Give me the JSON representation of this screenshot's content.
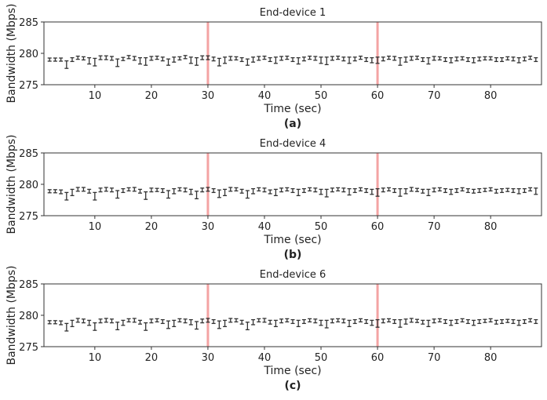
{
  "chart_data": [
    {
      "type": "scatter",
      "title": "End-device 1",
      "caption": "(a)",
      "xlabel": "Time (sec)",
      "ylabel": "Bandwidth (Mbps)",
      "xlim": [
        1,
        89
      ],
      "ylim": [
        275,
        285
      ],
      "xticks": [
        10,
        20,
        30,
        40,
        50,
        60,
        70,
        80
      ],
      "yticks": [
        275,
        280,
        285
      ],
      "grid": false,
      "markers": {
        "x": [
          30,
          60
        ],
        "color": "#f4a3a3"
      },
      "error_bar_color": "#333333",
      "x": [
        2,
        3,
        4,
        5,
        6,
        7,
        8,
        9,
        10,
        11,
        12,
        13,
        14,
        15,
        16,
        17,
        18,
        19,
        20,
        21,
        22,
        23,
        24,
        25,
        26,
        27,
        28,
        29,
        30,
        31,
        32,
        33,
        34,
        35,
        36,
        37,
        38,
        39,
        40,
        41,
        42,
        43,
        44,
        45,
        46,
        47,
        48,
        49,
        50,
        51,
        52,
        53,
        54,
        55,
        56,
        57,
        58,
        59,
        60,
        61,
        62,
        63,
        64,
        65,
        66,
        67,
        68,
        69,
        70,
        71,
        72,
        73,
        74,
        75,
        76,
        77,
        78,
        79,
        80,
        81,
        82,
        83,
        84,
        85,
        86,
        87,
        88
      ],
      "mean": [
        279,
        279,
        279,
        278.2,
        279,
        279.3,
        279.2,
        278.8,
        278.6,
        279.3,
        279.3,
        279.2,
        278.5,
        279.1,
        279.4,
        279.2,
        278.8,
        278.7,
        279.2,
        279.3,
        279.1,
        278.6,
        279,
        279.2,
        279.4,
        278.9,
        278.7,
        279.3,
        279.3,
        279.1,
        278.6,
        278.9,
        279.2,
        279.2,
        279,
        278.6,
        279,
        279.2,
        279.3,
        279,
        278.9,
        279.2,
        279.3,
        279,
        278.8,
        279.1,
        279.3,
        279.2,
        278.9,
        278.8,
        279.2,
        279.3,
        279.1,
        278.9,
        279.1,
        279.3,
        279,
        278.9,
        278.9,
        279.1,
        279.3,
        279.2,
        278.7,
        279,
        279.2,
        279.3,
        279,
        278.8,
        279.2,
        279.2,
        279,
        278.9,
        279.1,
        279.2,
        279,
        278.9,
        279.1,
        279.2,
        279.2,
        279,
        279,
        279.2,
        279.1,
        278.9,
        279.1,
        279.3,
        279
      ],
      "err": [
        0.25,
        0.25,
        0.25,
        0.6,
        0.3,
        0.25,
        0.25,
        0.5,
        0.6,
        0.3,
        0.3,
        0.3,
        0.6,
        0.25,
        0.25,
        0.3,
        0.5,
        0.6,
        0.3,
        0.25,
        0.3,
        0.5,
        0.4,
        0.25,
        0.25,
        0.5,
        0.6,
        0.3,
        0.3,
        0.3,
        0.6,
        0.5,
        0.3,
        0.25,
        0.3,
        0.5,
        0.4,
        0.3,
        0.25,
        0.3,
        0.5,
        0.3,
        0.25,
        0.3,
        0.5,
        0.3,
        0.25,
        0.3,
        0.5,
        0.6,
        0.3,
        0.25,
        0.3,
        0.5,
        0.3,
        0.25,
        0.3,
        0.4,
        0.5,
        0.3,
        0.25,
        0.3,
        0.6,
        0.4,
        0.3,
        0.25,
        0.3,
        0.5,
        0.3,
        0.25,
        0.3,
        0.4,
        0.3,
        0.25,
        0.3,
        0.4,
        0.3,
        0.25,
        0.25,
        0.3,
        0.3,
        0.25,
        0.3,
        0.4,
        0.3,
        0.25,
        0.3
      ]
    },
    {
      "type": "scatter",
      "title": "End-device 4",
      "caption": "(b)",
      "xlabel": "Time (sec)",
      "ylabel": "Bandwidth (Mbps)",
      "xlim": [
        1,
        89
      ],
      "ylim": [
        275,
        285
      ],
      "xticks": [
        10,
        20,
        30,
        40,
        50,
        60,
        70,
        80
      ],
      "yticks": [
        275,
        280,
        285
      ],
      "grid": false,
      "markers": {
        "x": [
          30,
          60
        ],
        "color": "#f4a3a3"
      },
      "error_bar_color": "#333333",
      "x": [
        2,
        3,
        4,
        5,
        6,
        7,
        8,
        9,
        10,
        11,
        12,
        13,
        14,
        15,
        16,
        17,
        18,
        19,
        20,
        21,
        22,
        23,
        24,
        25,
        26,
        27,
        28,
        29,
        30,
        31,
        32,
        33,
        34,
        35,
        36,
        37,
        38,
        39,
        40,
        41,
        42,
        43,
        44,
        45,
        46,
        47,
        48,
        49,
        50,
        51,
        52,
        53,
        54,
        55,
        56,
        57,
        58,
        59,
        60,
        61,
        62,
        63,
        64,
        65,
        66,
        67,
        68,
        69,
        70,
        71,
        72,
        73,
        74,
        75,
        76,
        77,
        78,
        79,
        80,
        81,
        82,
        83,
        84,
        85,
        86,
        87,
        88
      ],
      "mean": [
        278.9,
        278.9,
        278.8,
        278.1,
        278.7,
        279.2,
        279.2,
        278.9,
        278.1,
        279.1,
        279.2,
        279.1,
        278.4,
        279,
        279.2,
        279.2,
        278.9,
        278.2,
        279.1,
        279.1,
        279,
        278.4,
        278.9,
        279.2,
        279.1,
        278.8,
        278.3,
        279.1,
        279.2,
        279,
        278.5,
        278.7,
        279.2,
        279.2,
        278.9,
        278.4,
        278.9,
        279.2,
        279.1,
        278.8,
        278.7,
        279.1,
        279.2,
        279,
        278.7,
        279,
        279.2,
        279.1,
        278.8,
        278.6,
        279.1,
        279.2,
        279.1,
        278.8,
        279,
        279.2,
        279,
        278.8,
        278.7,
        279.1,
        279.2,
        279,
        278.7,
        278.9,
        279.2,
        279.1,
        278.9,
        278.7,
        279.1,
        279.2,
        279,
        278.8,
        279,
        279.2,
        279,
        278.9,
        279,
        279.1,
        279.2,
        278.9,
        279,
        279.1,
        279,
        278.9,
        279,
        279.2,
        278.9
      ],
      "err": [
        0.25,
        0.25,
        0.3,
        0.6,
        0.5,
        0.3,
        0.3,
        0.3,
        0.6,
        0.3,
        0.3,
        0.3,
        0.6,
        0.3,
        0.25,
        0.3,
        0.3,
        0.6,
        0.3,
        0.25,
        0.3,
        0.6,
        0.4,
        0.25,
        0.3,
        0.4,
        0.6,
        0.3,
        0.3,
        0.3,
        0.6,
        0.5,
        0.3,
        0.25,
        0.3,
        0.6,
        0.4,
        0.25,
        0.3,
        0.3,
        0.5,
        0.3,
        0.25,
        0.3,
        0.5,
        0.3,
        0.25,
        0.3,
        0.4,
        0.6,
        0.3,
        0.25,
        0.3,
        0.5,
        0.3,
        0.25,
        0.3,
        0.4,
        0.6,
        0.3,
        0.25,
        0.3,
        0.6,
        0.4,
        0.3,
        0.25,
        0.3,
        0.5,
        0.3,
        0.25,
        0.3,
        0.4,
        0.3,
        0.25,
        0.3,
        0.3,
        0.3,
        0.25,
        0.25,
        0.3,
        0.3,
        0.25,
        0.3,
        0.4,
        0.3,
        0.25,
        0.5
      ]
    },
    {
      "type": "scatter",
      "title": "End-device 6",
      "caption": "(c)",
      "xlabel": "Time (sec)",
      "ylabel": "Bandwidth (Mbps)",
      "xlim": [
        1,
        89
      ],
      "ylim": [
        275,
        285
      ],
      "xticks": [
        10,
        20,
        30,
        40,
        50,
        60,
        70,
        80
      ],
      "yticks": [
        275,
        280,
        285
      ],
      "grid": false,
      "markers": {
        "x": [
          30,
          60
        ],
        "color": "#f4a3a3"
      },
      "error_bar_color": "#333333",
      "x": [
        2,
        3,
        4,
        5,
        6,
        7,
        8,
        9,
        10,
        11,
        12,
        13,
        14,
        15,
        16,
        17,
        18,
        19,
        20,
        21,
        22,
        23,
        24,
        25,
        26,
        27,
        28,
        29,
        30,
        31,
        32,
        33,
        34,
        35,
        36,
        37,
        38,
        39,
        40,
        41,
        42,
        43,
        44,
        45,
        46,
        47,
        48,
        49,
        50,
        51,
        52,
        53,
        54,
        55,
        56,
        57,
        58,
        59,
        60,
        61,
        62,
        63,
        64,
        65,
        66,
        67,
        68,
        69,
        70,
        71,
        72,
        73,
        74,
        75,
        76,
        77,
        78,
        79,
        80,
        81,
        82,
        83,
        84,
        85,
        86,
        87,
        88
      ],
      "mean": [
        278.9,
        278.9,
        278.8,
        278.1,
        278.7,
        279.2,
        279.1,
        278.8,
        278.2,
        279.1,
        279.2,
        279.1,
        278.3,
        278.8,
        279.2,
        279.2,
        278.9,
        278.2,
        279.1,
        279.2,
        279,
        278.5,
        278.7,
        279.2,
        279.1,
        278.9,
        278.4,
        279.1,
        279.2,
        279,
        278.5,
        278.7,
        279.2,
        279.2,
        278.9,
        278.3,
        278.9,
        279.2,
        279.2,
        278.9,
        278.7,
        279.1,
        279.2,
        279,
        278.7,
        279,
        279.2,
        279.1,
        278.8,
        278.6,
        279.1,
        279.2,
        279.1,
        278.7,
        279,
        279.2,
        279,
        278.8,
        278.7,
        279.1,
        279.2,
        279,
        278.7,
        279,
        279.2,
        279.1,
        278.9,
        278.7,
        279.1,
        279.2,
        279,
        278.8,
        279,
        279.2,
        279,
        278.8,
        279,
        279.1,
        279.2,
        278.9,
        279,
        279.1,
        279,
        278.8,
        279,
        279.2,
        279
      ],
      "err": [
        0.25,
        0.25,
        0.3,
        0.6,
        0.5,
        0.3,
        0.3,
        0.4,
        0.6,
        0.3,
        0.3,
        0.3,
        0.6,
        0.4,
        0.25,
        0.3,
        0.3,
        0.6,
        0.3,
        0.25,
        0.3,
        0.6,
        0.5,
        0.25,
        0.3,
        0.4,
        0.6,
        0.3,
        0.3,
        0.3,
        0.6,
        0.5,
        0.3,
        0.25,
        0.3,
        0.6,
        0.4,
        0.25,
        0.3,
        0.3,
        0.5,
        0.3,
        0.25,
        0.3,
        0.5,
        0.3,
        0.25,
        0.3,
        0.4,
        0.6,
        0.3,
        0.25,
        0.3,
        0.5,
        0.3,
        0.25,
        0.3,
        0.4,
        0.6,
        0.3,
        0.25,
        0.3,
        0.6,
        0.4,
        0.3,
        0.25,
        0.3,
        0.5,
        0.3,
        0.25,
        0.3,
        0.4,
        0.3,
        0.25,
        0.3,
        0.4,
        0.3,
        0.25,
        0.25,
        0.3,
        0.3,
        0.25,
        0.3,
        0.4,
        0.3,
        0.25,
        0.3
      ]
    }
  ]
}
